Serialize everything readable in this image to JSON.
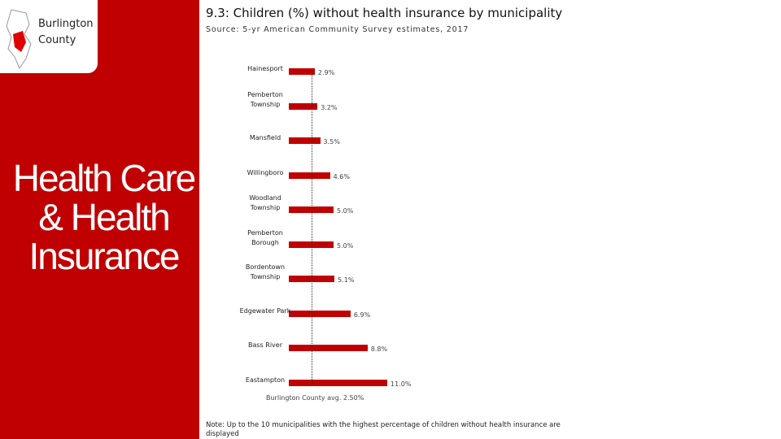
{
  "sidebar": {
    "county": "Burlington County",
    "section": "Health Care & Health Insurance"
  },
  "chart_data": {
    "type": "bar",
    "orientation": "horizontal",
    "title": "9.3: Children (%) without health insurance by municipality",
    "subtitle": "Source: 5-yr American Community Survey estimates, 2017",
    "categories": [
      "Hainesport",
      "Pemberton\nTownship",
      "Mansfield",
      "Willingboro",
      "Woodland\nTownship",
      "Pemberton\nBorough",
      "Bordentown\nTownship",
      "Edgewater Park",
      "Bass River",
      "Eastampton"
    ],
    "values": [
      2.9,
      3.2,
      3.5,
      4.6,
      5.0,
      5.0,
      5.1,
      6.9,
      8.8,
      11.0
    ],
    "value_labels": [
      "2.9%",
      "3.2%",
      "3.5%",
      "4.6%",
      "5.0%",
      "5.0%",
      "5.1%",
      "6.9%",
      "8.8%",
      "11.0%"
    ],
    "color": "#c00000",
    "reference": {
      "value": 2.5,
      "label": "Burlington County avg. 2.50%"
    },
    "note": "Note: Up to the 10 municipalities with the highest percentage of children without health insurance are displayed"
  }
}
